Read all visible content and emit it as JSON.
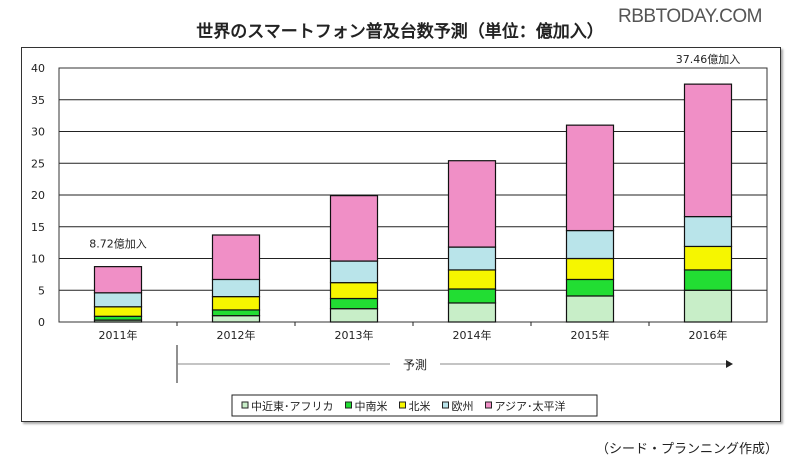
{
  "title": "世界のスマートフォン普及台数予測（単位：億加入）",
  "watermark": "RBBTODAY.COM",
  "credit": "（シード・プランニング作成）",
  "forecast_label": "予測",
  "chart_data": {
    "type": "bar",
    "stacked": true,
    "title": "世界のスマートフォン普及台数予測（単位：億加入）",
    "categories": [
      "2011年",
      "2012年",
      "2013年",
      "2014年",
      "2015年",
      "2016年"
    ],
    "ylim": [
      0,
      40
    ],
    "yticks": [
      0,
      5,
      10,
      15,
      20,
      25,
      30,
      35,
      40
    ],
    "grid": true,
    "legend_position": "bottom",
    "series": [
      {
        "name": "中近東･アフリカ",
        "color": "#c8eec8",
        "values": [
          0.3,
          1.0,
          2.1,
          3.0,
          4.1,
          5.0
        ]
      },
      {
        "name": "中南米",
        "color": "#22dd33",
        "values": [
          0.6,
          0.9,
          1.6,
          2.2,
          2.6,
          3.2
        ]
      },
      {
        "name": "北米",
        "color": "#f6f600",
        "values": [
          1.5,
          2.1,
          2.5,
          3.0,
          3.3,
          3.7
        ]
      },
      {
        "name": "欧州",
        "color": "#b9e4ea",
        "values": [
          2.2,
          2.7,
          3.4,
          3.6,
          4.4,
          4.7
        ]
      },
      {
        "name": "アジア･太平洋",
        "color": "#f08fc6",
        "values": [
          4.12,
          7.0,
          10.3,
          13.6,
          16.6,
          20.86
        ]
      }
    ],
    "annotations": [
      {
        "category": "2011年",
        "text": "8.72億加入"
      },
      {
        "category": "2016年",
        "text": "37.46億加入"
      }
    ]
  }
}
